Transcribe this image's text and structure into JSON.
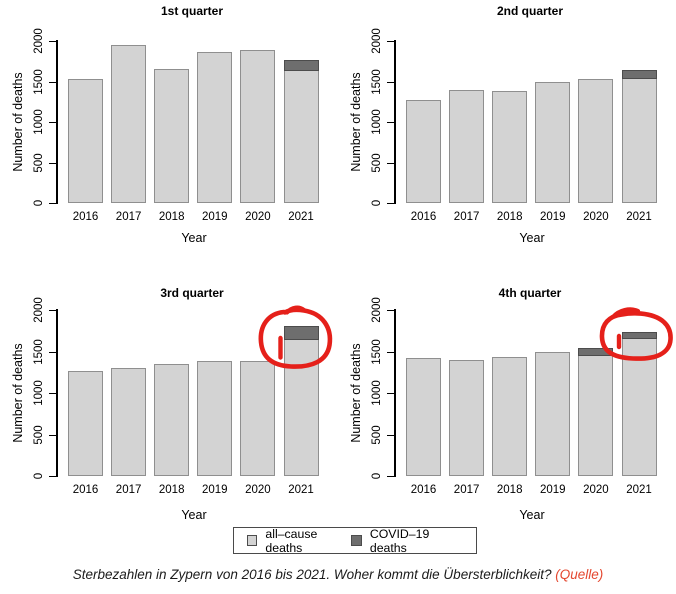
{
  "colors": {
    "background": "#ffffff",
    "all_cause_fill": "#d3d3d3",
    "all_cause_border": "#8f8f8f",
    "covid_fill": "#6e6e6e",
    "covid_border": "#4c4c4c",
    "axis_color": "#000000",
    "annotation_red": "#e5201a",
    "caption_link_color": "#e4472f"
  },
  "legend": {
    "items": [
      {
        "label": "all–cause deaths",
        "swatch": "all_cause"
      },
      {
        "label": "COVID–19 deaths",
        "swatch": "covid"
      }
    ]
  },
  "caption": {
    "text": "Sterbezahlen in Zypern von 2016 bis 2021. Woher kommt die Übersterblichkeit? ",
    "link_text": "(Quelle)"
  },
  "chart_data": [
    {
      "type": "bar",
      "title": "1st quarter",
      "xlabel": "Year",
      "ylabel": "Number of deaths",
      "ylim": [
        0,
        2000
      ],
      "yticks": [
        0,
        500,
        1000,
        1500,
        2000
      ],
      "grid": false,
      "categories": [
        "2016",
        "2017",
        "2018",
        "2019",
        "2020",
        "2021"
      ],
      "series": [
        {
          "name": "all-cause deaths",
          "values": [
            1530,
            1950,
            1660,
            1860,
            1890,
            1770
          ]
        },
        {
          "name": "COVID-19 deaths",
          "values": [
            0,
            0,
            0,
            0,
            0,
            140
          ]
        }
      ],
      "annotation": null
    },
    {
      "type": "bar",
      "title": "2nd quarter",
      "xlabel": "Year",
      "ylabel": "Number of deaths",
      "ylim": [
        0,
        2000
      ],
      "yticks": [
        0,
        500,
        1000,
        1500,
        2000
      ],
      "grid": false,
      "categories": [
        "2016",
        "2017",
        "2018",
        "2019",
        "2020",
        "2021"
      ],
      "series": [
        {
          "name": "all-cause deaths",
          "values": [
            1270,
            1390,
            1380,
            1500,
            1530,
            1640
          ]
        },
        {
          "name": "COVID-19 deaths",
          "values": [
            0,
            0,
            0,
            0,
            0,
            110
          ]
        }
      ],
      "annotation": null
    },
    {
      "type": "bar",
      "title": "3rd quarter",
      "xlabel": "Year",
      "ylabel": "Number of deaths",
      "ylim": [
        0,
        2000
      ],
      "yticks": [
        0,
        500,
        1000,
        1500,
        2000
      ],
      "grid": false,
      "categories": [
        "2016",
        "2017",
        "2018",
        "2019",
        "2020",
        "2021"
      ],
      "series": [
        {
          "name": "all-cause deaths",
          "values": [
            1260,
            1300,
            1350,
            1390,
            1380,
            1810
          ]
        },
        {
          "name": "COVID-19 deaths",
          "values": [
            0,
            0,
            0,
            0,
            0,
            170
          ]
        }
      ],
      "annotation": {
        "type": "hand-drawn-red-circle",
        "target": "2021"
      }
    },
    {
      "type": "bar",
      "title": "4th quarter",
      "xlabel": "Year",
      "ylabel": "Number of deaths",
      "ylim": [
        0,
        2000
      ],
      "yticks": [
        0,
        500,
        1000,
        1500,
        2000
      ],
      "grid": false,
      "categories": [
        "2016",
        "2017",
        "2018",
        "2019",
        "2020",
        "2021"
      ],
      "series": [
        {
          "name": "all-cause deaths",
          "values": [
            1420,
            1400,
            1430,
            1500,
            1540,
            1730
          ]
        },
        {
          "name": "COVID-19 deaths",
          "values": [
            0,
            0,
            0,
            0,
            90,
            80
          ]
        }
      ],
      "annotation": {
        "type": "hand-drawn-red-circle",
        "target": "2021"
      }
    }
  ]
}
